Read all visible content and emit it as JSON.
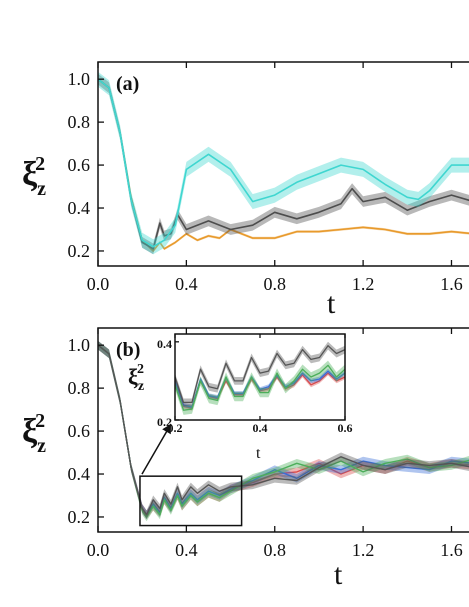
{
  "chart_data": [
    {
      "panel": "(a)",
      "type": "line",
      "xlabel_main": "t",
      "ylabel": {
        "base": "ξ",
        "sub": "z",
        "sup": "2"
      },
      "xlim": [
        0.0,
        1.72
      ],
      "ylim": [
        0.13,
        1.08
      ],
      "xticks": [
        "0.0",
        "0.4",
        "0.8",
        "1.2",
        "1.6"
      ],
      "yticks": [
        "0.2",
        "0.4",
        "0.6",
        "0.8",
        "1.0"
      ],
      "series": [
        {
          "color": "#e89a2c",
          "band": 0.006,
          "x": [
            0.0,
            0.05,
            0.1,
            0.15,
            0.2,
            0.25,
            0.28,
            0.3,
            0.35,
            0.4,
            0.45,
            0.5,
            0.55,
            0.6,
            0.7,
            0.8,
            0.9,
            1.0,
            1.1,
            1.2,
            1.3,
            1.4,
            1.5,
            1.6,
            1.7
          ],
          "y": [
            1.0,
            0.96,
            0.75,
            0.45,
            0.25,
            0.2,
            0.24,
            0.21,
            0.24,
            0.28,
            0.25,
            0.27,
            0.26,
            0.3,
            0.26,
            0.26,
            0.29,
            0.29,
            0.3,
            0.31,
            0.3,
            0.28,
            0.28,
            0.29,
            0.28
          ]
        },
        {
          "color": "#4d4d4d",
          "band": 0.025,
          "x": [
            0.0,
            0.05,
            0.1,
            0.15,
            0.2,
            0.25,
            0.28,
            0.3,
            0.33,
            0.36,
            0.4,
            0.5,
            0.6,
            0.7,
            0.8,
            0.9,
            1.0,
            1.1,
            1.15,
            1.2,
            1.3,
            1.4,
            1.5,
            1.6,
            1.7
          ],
          "y": [
            1.0,
            0.96,
            0.75,
            0.44,
            0.24,
            0.21,
            0.33,
            0.27,
            0.28,
            0.37,
            0.3,
            0.34,
            0.3,
            0.32,
            0.38,
            0.35,
            0.38,
            0.42,
            0.49,
            0.43,
            0.45,
            0.39,
            0.43,
            0.46,
            0.43
          ]
        },
        {
          "color": "#3fd6d0",
          "band": 0.035,
          "x": [
            0.0,
            0.05,
            0.1,
            0.15,
            0.2,
            0.25,
            0.3,
            0.35,
            0.4,
            0.5,
            0.6,
            0.7,
            0.8,
            0.9,
            1.0,
            1.1,
            1.2,
            1.3,
            1.4,
            1.45,
            1.5,
            1.6,
            1.7
          ],
          "y": [
            1.0,
            0.96,
            0.75,
            0.44,
            0.25,
            0.22,
            0.25,
            0.32,
            0.58,
            0.65,
            0.58,
            0.43,
            0.46,
            0.52,
            0.56,
            0.6,
            0.58,
            0.51,
            0.45,
            0.44,
            0.48,
            0.6,
            0.6
          ]
        }
      ]
    },
    {
      "panel": "(b)",
      "type": "line",
      "xlabel_main": "t",
      "ylabel": {
        "base": "ξ",
        "sub": "z",
        "sup": "2"
      },
      "xlim": [
        0.0,
        1.72
      ],
      "ylim": [
        0.13,
        1.08
      ],
      "xticks": [
        "0.0",
        "0.4",
        "0.8",
        "1.2",
        "1.6"
      ],
      "yticks": [
        "0.2",
        "0.4",
        "0.6",
        "0.8",
        "1.0"
      ],
      "inset": {
        "xlabel": "t",
        "xlim": [
          0.2,
          0.6
        ],
        "ylim": [
          0.2,
          0.42
        ],
        "xticks": [
          "0.2",
          "0.4",
          "0.6"
        ],
        "yticks": [
          "0.2",
          "0.4"
        ],
        "zoom_box": {
          "x": [
            0.19,
            0.65
          ],
          "y": [
            0.16,
            0.39
          ]
        }
      },
      "series": [
        {
          "color": "#d94a4a",
          "band": 0.02,
          "x": [
            0.0,
            0.05,
            0.1,
            0.15,
            0.2,
            0.22,
            0.25,
            0.28,
            0.3,
            0.33,
            0.36,
            0.38,
            0.42,
            0.45,
            0.5,
            0.55,
            0.6,
            0.7,
            0.8,
            0.9,
            1.0,
            1.1,
            1.2,
            1.3,
            1.4,
            1.5,
            1.6,
            1.7
          ],
          "y": [
            1.0,
            0.96,
            0.74,
            0.43,
            0.24,
            0.21,
            0.25,
            0.22,
            0.28,
            0.24,
            0.3,
            0.25,
            0.3,
            0.27,
            0.31,
            0.29,
            0.33,
            0.36,
            0.4,
            0.41,
            0.45,
            0.4,
            0.44,
            0.42,
            0.46,
            0.43,
            0.45,
            0.44
          ]
        },
        {
          "color": "#3a6fd8",
          "band": 0.02,
          "x": [
            0.0,
            0.05,
            0.1,
            0.15,
            0.2,
            0.22,
            0.25,
            0.28,
            0.3,
            0.33,
            0.36,
            0.38,
            0.42,
            0.45,
            0.5,
            0.55,
            0.6,
            0.7,
            0.8,
            0.9,
            1.0,
            1.1,
            1.2,
            1.3,
            1.4,
            1.5,
            1.6,
            1.7
          ],
          "y": [
            1.0,
            0.96,
            0.74,
            0.43,
            0.24,
            0.21,
            0.26,
            0.22,
            0.29,
            0.24,
            0.31,
            0.26,
            0.31,
            0.28,
            0.32,
            0.3,
            0.33,
            0.37,
            0.42,
            0.38,
            0.44,
            0.42,
            0.46,
            0.44,
            0.43,
            0.42,
            0.46,
            0.45
          ]
        },
        {
          "color": "#4cae5a",
          "band": 0.02,
          "x": [
            0.0,
            0.05,
            0.1,
            0.15,
            0.2,
            0.22,
            0.25,
            0.28,
            0.3,
            0.33,
            0.36,
            0.38,
            0.42,
            0.45,
            0.5,
            0.55,
            0.6,
            0.7,
            0.8,
            0.9,
            1.0,
            1.1,
            1.2,
            1.3,
            1.4,
            1.5,
            1.6,
            1.7
          ],
          "y": [
            1.0,
            0.96,
            0.74,
            0.43,
            0.23,
            0.2,
            0.25,
            0.21,
            0.28,
            0.23,
            0.3,
            0.25,
            0.3,
            0.27,
            0.31,
            0.29,
            0.32,
            0.38,
            0.41,
            0.45,
            0.42,
            0.46,
            0.41,
            0.45,
            0.47,
            0.43,
            0.44,
            0.47
          ]
        },
        {
          "color": "#555555",
          "band": 0.02,
          "x": [
            0.0,
            0.05,
            0.1,
            0.15,
            0.2,
            0.22,
            0.25,
            0.28,
            0.3,
            0.33,
            0.36,
            0.38,
            0.42,
            0.45,
            0.5,
            0.55,
            0.6,
            0.7,
            0.8,
            0.9,
            1.0,
            1.1,
            1.2,
            1.3,
            1.4,
            1.5,
            1.6,
            1.7
          ],
          "y": [
            1.0,
            0.96,
            0.74,
            0.43,
            0.24,
            0.21,
            0.28,
            0.24,
            0.31,
            0.26,
            0.34,
            0.28,
            0.34,
            0.31,
            0.35,
            0.32,
            0.34,
            0.35,
            0.38,
            0.37,
            0.43,
            0.48,
            0.44,
            0.42,
            0.45,
            0.44,
            0.45,
            0.43
          ]
        }
      ],
      "inset_series": [
        {
          "color": "#d94a4a",
          "band": 0.006,
          "x": [
            0.2,
            0.22,
            0.24,
            0.26,
            0.28,
            0.3,
            0.32,
            0.34,
            0.36,
            0.38,
            0.4,
            0.42,
            0.44,
            0.46,
            0.48,
            0.5,
            0.52,
            0.54,
            0.56,
            0.58,
            0.6
          ],
          "y": [
            0.3,
            0.235,
            0.23,
            0.3,
            0.26,
            0.255,
            0.3,
            0.265,
            0.265,
            0.305,
            0.275,
            0.28,
            0.31,
            0.28,
            0.29,
            0.315,
            0.29,
            0.3,
            0.32,
            0.3,
            0.31
          ]
        },
        {
          "color": "#3a6fd8",
          "band": 0.006,
          "x": [
            0.2,
            0.22,
            0.24,
            0.26,
            0.28,
            0.3,
            0.32,
            0.34,
            0.36,
            0.38,
            0.4,
            0.42,
            0.44,
            0.46,
            0.48,
            0.5,
            0.52,
            0.54,
            0.56,
            0.58,
            0.6
          ],
          "y": [
            0.3,
            0.238,
            0.233,
            0.305,
            0.262,
            0.258,
            0.308,
            0.268,
            0.268,
            0.31,
            0.278,
            0.285,
            0.315,
            0.285,
            0.295,
            0.32,
            0.3,
            0.305,
            0.325,
            0.305,
            0.32
          ]
        },
        {
          "color": "#4cae5a",
          "band": 0.012,
          "x": [
            0.2,
            0.22,
            0.24,
            0.26,
            0.28,
            0.3,
            0.32,
            0.34,
            0.36,
            0.38,
            0.4,
            0.42,
            0.44,
            0.46,
            0.48,
            0.5,
            0.52,
            0.54,
            0.56,
            0.58,
            0.6
          ],
          "y": [
            0.29,
            0.225,
            0.228,
            0.3,
            0.255,
            0.25,
            0.31,
            0.26,
            0.26,
            0.31,
            0.27,
            0.27,
            0.32,
            0.28,
            0.3,
            0.33,
            0.31,
            0.32,
            0.34,
            0.31,
            0.33
          ]
        },
        {
          "color": "#555555",
          "band": 0.01,
          "x": [
            0.2,
            0.22,
            0.24,
            0.26,
            0.28,
            0.3,
            0.32,
            0.34,
            0.36,
            0.38,
            0.4,
            0.42,
            0.44,
            0.46,
            0.48,
            0.5,
            0.52,
            0.54,
            0.56,
            0.58,
            0.6
          ],
          "y": [
            0.31,
            0.245,
            0.245,
            0.33,
            0.285,
            0.28,
            0.345,
            0.3,
            0.3,
            0.36,
            0.32,
            0.325,
            0.37,
            0.34,
            0.345,
            0.38,
            0.355,
            0.36,
            0.39,
            0.37,
            0.38
          ]
        }
      ]
    }
  ]
}
